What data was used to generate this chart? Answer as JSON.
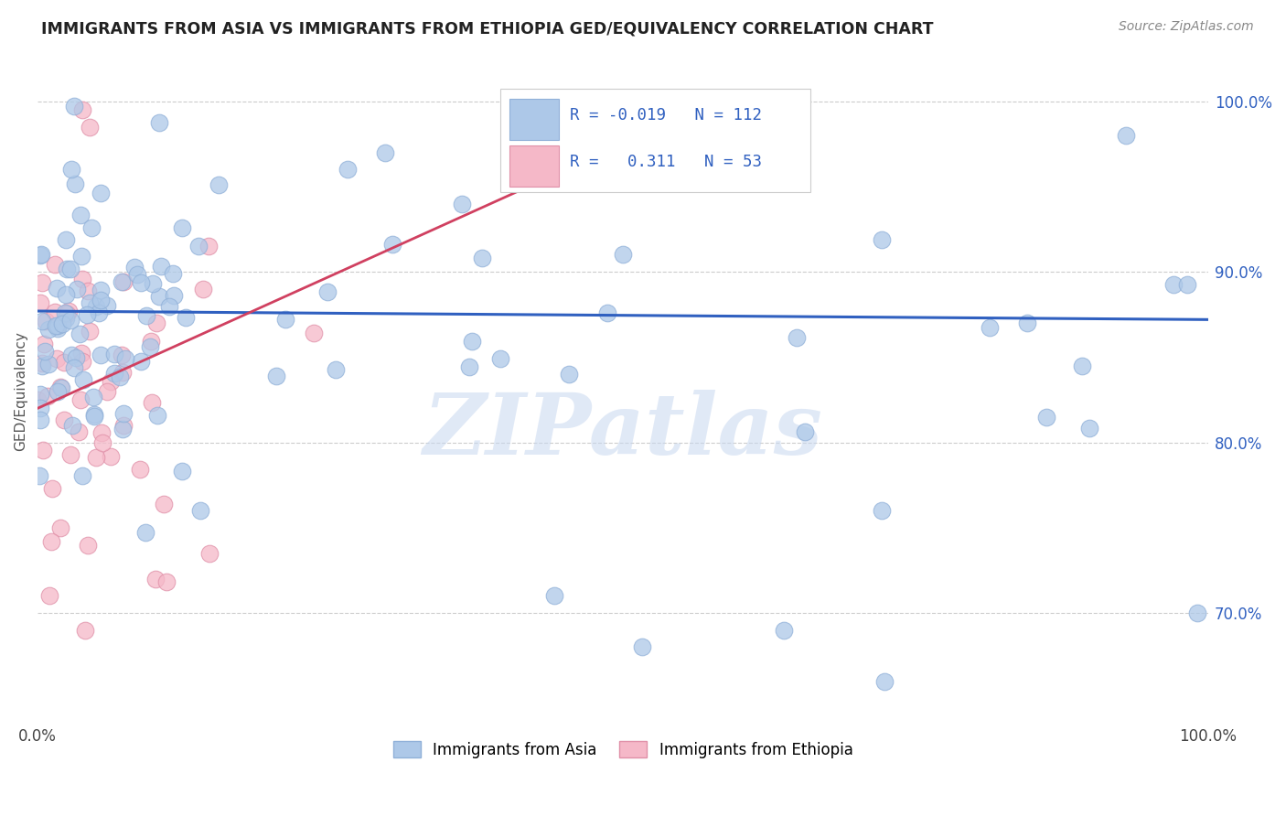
{
  "title": "IMMIGRANTS FROM ASIA VS IMMIGRANTS FROM ETHIOPIA GED/EQUIVALENCY CORRELATION CHART",
  "source": "Source: ZipAtlas.com",
  "ylabel": "GED/Equivalency",
  "right_yticks": [
    "70.0%",
    "80.0%",
    "90.0%",
    "100.0%"
  ],
  "right_ytick_vals": [
    0.7,
    0.8,
    0.9,
    1.0
  ],
  "watermark": "ZIPatlas",
  "asia_color": "#adc8e8",
  "ethiopia_color": "#f5b8c8",
  "asia_edge": "#90b0d8",
  "ethiopia_edge": "#e090a8",
  "trend_asia_color": "#3060c0",
  "trend_ethiopia_color": "#d04060",
  "background": "#ffffff",
  "ylim_min": 0.635,
  "ylim_max": 1.025,
  "xlim_min": 0.0,
  "xlim_max": 1.0,
  "asia_trend_y0": 0.877,
  "asia_trend_y1": 0.872,
  "ethiopia_trend_x0": 0.0,
  "ethiopia_trend_y0": 0.82,
  "ethiopia_trend_x1": 0.5,
  "ethiopia_trend_y1": 0.975
}
